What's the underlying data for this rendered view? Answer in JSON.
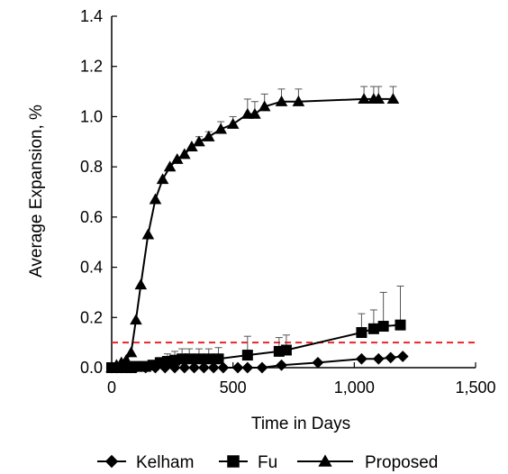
{
  "chart_data": {
    "type": "scatter",
    "title": "",
    "xlabel": "Time in Days",
    "ylabel": "Average Expansion, %",
    "xlim": [
      0,
      1500
    ],
    "ylim": [
      0,
      1.4
    ],
    "x_ticks": [
      0,
      500,
      1000,
      1500
    ],
    "x_tick_labels": [
      "0",
      "500",
      "1,000",
      "1,500"
    ],
    "y_ticks": [
      0,
      0.2,
      0.4,
      0.6,
      0.8,
      1.0,
      1.2,
      1.4
    ],
    "y_tick_labels": [
      "0.0",
      "0.2",
      "0.4",
      "0.6",
      "0.8",
      "1.0",
      "1.2",
      "1.4"
    ],
    "grid": false,
    "legend_position": "bottom",
    "reference_line": {
      "y": 0.1,
      "color": "#e8262a",
      "style": "dashed"
    },
    "series": [
      {
        "name": "Kelham",
        "marker": "diamond",
        "color": "#000000",
        "x": [
          0,
          20,
          40,
          60,
          80,
          100,
          140,
          180,
          220,
          260,
          300,
          340,
          380,
          420,
          460,
          520,
          560,
          620,
          700,
          850,
          1030,
          1100,
          1150,
          1200
        ],
        "y": [
          0,
          0,
          0,
          0,
          0,
          0,
          0,
          0,
          0,
          0,
          0,
          0,
          0,
          0,
          0,
          0,
          0,
          0,
          0.01,
          0.02,
          0.035,
          0.035,
          0.04,
          0.045
        ],
        "error": [
          0,
          0,
          0,
          0,
          0,
          0,
          0,
          0,
          0,
          0,
          0,
          0,
          0,
          0,
          0,
          0,
          0,
          0,
          0,
          0,
          0,
          0,
          0,
          0
        ]
      },
      {
        "name": "Fu",
        "marker": "square",
        "color": "#000000",
        "x": [
          0,
          20,
          40,
          60,
          80,
          100,
          140,
          170,
          200,
          230,
          260,
          290,
          320,
          360,
          400,
          440,
          560,
          690,
          720,
          1030,
          1080,
          1120,
          1190
        ],
        "y": [
          0,
          0,
          0,
          0,
          0,
          0.005,
          0.005,
          0.01,
          0.02,
          0.025,
          0.03,
          0.035,
          0.035,
          0.035,
          0.035,
          0.035,
          0.05,
          0.065,
          0.07,
          0.14,
          0.155,
          0.165,
          0.17
        ],
        "error": [
          0,
          0,
          0,
          0,
          0,
          0.005,
          0.005,
          0.01,
          0.02,
          0.03,
          0.035,
          0.04,
          0.04,
          0.04,
          0.04,
          0.045,
          0.075,
          0.055,
          0.06,
          0.075,
          0.075,
          0.135,
          0.155
        ]
      },
      {
        "name": "Proposed",
        "marker": "triangle",
        "color": "#000000",
        "x": [
          0,
          20,
          40,
          60,
          80,
          100,
          120,
          150,
          180,
          210,
          240,
          270,
          300,
          330,
          360,
          400,
          450,
          500,
          560,
          590,
          630,
          700,
          770,
          1040,
          1080,
          1100,
          1160
        ],
        "y": [
          0,
          0.01,
          0.02,
          0.03,
          0.06,
          0.19,
          0.33,
          0.53,
          0.67,
          0.75,
          0.8,
          0.83,
          0.85,
          0.88,
          0.9,
          0.92,
          0.95,
          0.97,
          1.01,
          1.01,
          1.04,
          1.06,
          1.06,
          1.07,
          1.07,
          1.07,
          1.07
        ],
        "error": [
          0,
          0,
          0,
          0,
          0,
          0,
          0,
          0,
          0,
          0,
          0,
          0,
          0,
          0,
          0.02,
          0.02,
          0.03,
          0.03,
          0.06,
          0.05,
          0.05,
          0.05,
          0.05,
          0.05,
          0.05,
          0.05,
          0.05
        ]
      }
    ]
  }
}
